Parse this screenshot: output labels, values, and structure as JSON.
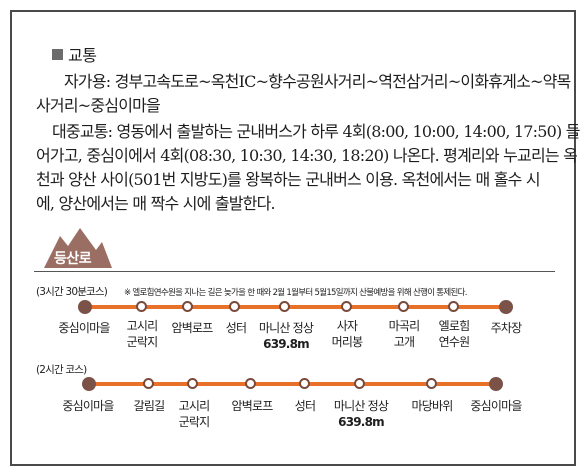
{
  "section_title": "교통",
  "paragraph": {
    "l1": "자가용: 경부고속도로~옥천IC~향수공원사거리~역전삼거리~이화휴게소~약목",
    "l2": "사거리~중심이마을",
    "l3": "대중교통: 영동에서 출발하는 군내버스가 하루 4회(8:00, 10:00, 14:00, 17:50) 들",
    "l4": "어가고, 중심이에서 4회(08:30, 10:30, 14:30, 18:20) 나온다. 평계리와 누교리는 옥",
    "l5": "천과 양산 사이(501번 지방도)를 왕복하는 군내버스 이용. 옥천에서는 매 홀수 시",
    "l6": "에, 양산에서는 매 짝수 시에 출발한다."
  },
  "trail_badge": "등산로",
  "course1": {
    "label": "(3시간 30분코스)",
    "note": "※ 엘로힘연수원을 지나는 길은 늦가을 한 때와 2월 1월부터 5월15일까지 산불예방을 위해 산행이 통제된다.",
    "stops": [
      {
        "l1": "중심이마을",
        "l2": "",
        "l3": ""
      },
      {
        "l1": "고시리",
        "l2": "군락지",
        "l3": ""
      },
      {
        "l1": "암벽로프",
        "l2": "",
        "l3": ""
      },
      {
        "l1": "성터",
        "l2": "",
        "l3": ""
      },
      {
        "l1": "마니산 정상",
        "l2": "",
        "l3": "639.8m"
      },
      {
        "l1": "사자",
        "l2": "머리봉",
        "l3": ""
      },
      {
        "l1": "마곡리",
        "l2": "고개",
        "l3": ""
      },
      {
        "l1": "엘로힘",
        "l2": "연수원",
        "l3": ""
      },
      {
        "l1": "주차장",
        "l2": "",
        "l3": ""
      }
    ]
  },
  "course2": {
    "label": "(2시간 코스)",
    "stops": [
      {
        "l1": "중심이마을",
        "l2": "",
        "l3": ""
      },
      {
        "l1": "갈림길",
        "l2": "",
        "l3": ""
      },
      {
        "l1": "고시리",
        "l2": "군락지",
        "l3": ""
      },
      {
        "l1": "암벽로프",
        "l2": "",
        "l3": ""
      },
      {
        "l1": "성터",
        "l2": "",
        "l3": ""
      },
      {
        "l1": "마니산 정상",
        "l2": "",
        "l3": "639.8m"
      },
      {
        "l1": "마당바위",
        "l2": "",
        "l3": ""
      },
      {
        "l1": "중심이마을",
        "l2": "",
        "l3": ""
      }
    ]
  },
  "colors": {
    "track": "#e8712a",
    "node": "#7a5248",
    "badge": "#9b6e63"
  }
}
